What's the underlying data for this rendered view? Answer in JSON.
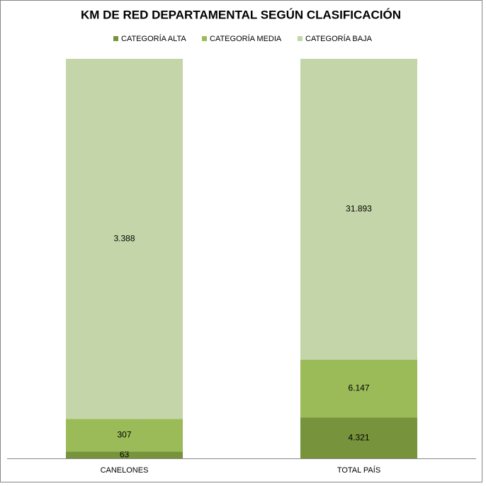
{
  "chart_data": {
    "type": "stacked_percent_bar",
    "title": "KM DE RED DEPARTAMENTAL SEGÚN CLASIFICACIÓN",
    "categories": [
      "CANELONES",
      "TOTAL PAÍS"
    ],
    "series": [
      {
        "name": "CATEGORÍA ALTA",
        "color": "#77933c",
        "values": [
          63,
          4321
        ],
        "value_labels": [
          "63",
          "4.321"
        ]
      },
      {
        "name": "CATEGORÍA MEDIA",
        "color": "#9bbb59",
        "values": [
          307,
          6147
        ],
        "value_labels": [
          "307",
          "6.147"
        ]
      },
      {
        "name": "CATEGORÍA BAJA",
        "color": "#c4d6a9",
        "values": [
          3388,
          31893
        ],
        "value_labels": [
          "3.388",
          "31.893"
        ]
      }
    ],
    "legend": "top"
  }
}
